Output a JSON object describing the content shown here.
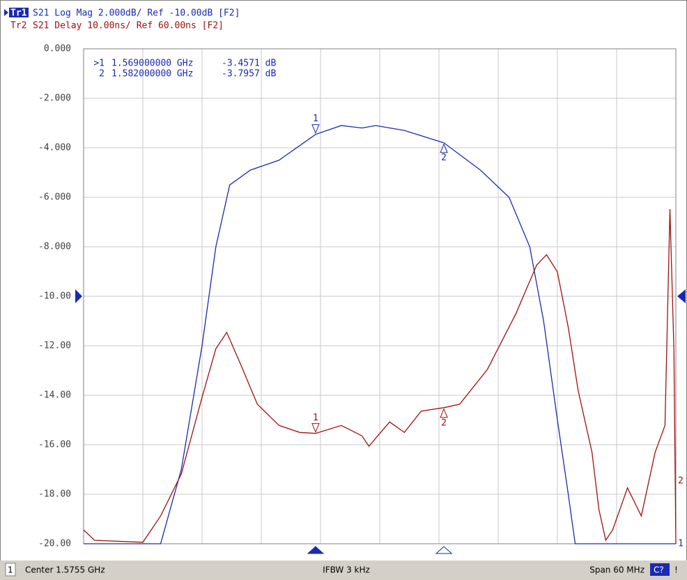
{
  "chart_data": {
    "type": "line",
    "xlim": [
      1.5455,
      1.6055
    ],
    "ylim": [
      -20,
      0
    ],
    "yticks": [
      {
        "value": 0,
        "label": "0.000"
      },
      {
        "value": -2,
        "label": "-2.000"
      },
      {
        "value": -4,
        "label": "-4.000"
      },
      {
        "value": -6,
        "label": "-6.000"
      },
      {
        "value": -8,
        "label": "-8.000"
      },
      {
        "value": -10,
        "label": "-10.00"
      },
      {
        "value": -12,
        "label": "-12.00"
      },
      {
        "value": -14,
        "label": "-14.00"
      },
      {
        "value": -16,
        "label": "-16.00"
      },
      {
        "value": -18,
        "label": "-18.00"
      },
      {
        "value": -20,
        "label": "-20.00"
      }
    ],
    "y2lim": [
      10,
      110
    ],
    "grid": true,
    "series": [
      {
        "name": "Tr1",
        "label": "S21 Log Mag 2.000dB/ Ref -10.00dB [F2]",
        "end_label": "1",
        "color": "#1a2ab0",
        "x": [
          1.5455,
          1.5533,
          1.5554,
          1.5575,
          1.5589,
          1.5603,
          1.5624,
          1.5653,
          1.569,
          1.5716,
          1.5737,
          1.5751,
          1.578,
          1.582,
          1.5857,
          1.5886,
          1.5907,
          1.5921,
          1.5935,
          1.5946,
          1.5953,
          1.6055
        ],
        "values": [
          -20,
          -20,
          -17,
          -12,
          -8,
          -5.5,
          -4.9,
          -4.5,
          -3.46,
          -3.1,
          -3.2,
          -3.1,
          -3.3,
          -3.8,
          -4.9,
          -6,
          -8,
          -11,
          -15,
          -18,
          -20,
          -20
        ]
      },
      {
        "name": "Tr2",
        "label": "S21 Delay 10.00ns/ Ref 60.00ns [F2]",
        "end_label": "2",
        "color": "#a01010",
        "axis": "y2",
        "x": [
          1.5455,
          1.5466,
          1.5515,
          1.5533,
          1.5554,
          1.5575,
          1.5589,
          1.56,
          1.5614,
          1.5631,
          1.5653,
          1.5674,
          1.569,
          1.5716,
          1.5737,
          1.5744,
          1.5765,
          1.578,
          1.5797,
          1.582,
          1.5836,
          1.5864,
          1.5893,
          1.5914,
          1.5924,
          1.5935,
          1.5946,
          1.5956,
          1.597,
          1.5977,
          1.5984,
          1.5991,
          1.6006,
          1.602,
          1.6034,
          1.6044,
          1.6049,
          1.6053,
          1.6055
        ],
        "values": [
          12.8,
          10.7,
          10.3,
          15.6,
          24.1,
          39.6,
          49.4,
          52.7,
          46.3,
          38.2,
          33.9,
          32.5,
          32.3,
          33.9,
          31.8,
          29.7,
          34.6,
          32.5,
          36.8,
          37.5,
          38.2,
          45.2,
          56.5,
          66.3,
          68.4,
          64.9,
          53.7,
          41.0,
          28.5,
          17.0,
          10.7,
          12.8,
          21.3,
          15.6,
          28.5,
          33.9,
          77.6,
          49.4,
          10.0
        ]
      }
    ],
    "markers": [
      {
        "label": "1",
        "prefix": ">1",
        "x": 1.569,
        "x_label": "1.569000000 GHz",
        "value": -3.4571,
        "value_label": "-3.4571 dB",
        "delay_value": 32.3
      },
      {
        "label": "2",
        "prefix": "2",
        "x": 1.582,
        "x_label": "1.582000000 GHz",
        "value": -3.7957,
        "value_label": "-3.7957 dB",
        "delay_value": 37.5
      }
    ]
  },
  "status": {
    "channel": "1",
    "center": "Center 1.5755 GHz",
    "ifbw": "IFBW 3 kHz",
    "span": "Span 60 MHz",
    "cal": "C?",
    "warn": "!"
  }
}
